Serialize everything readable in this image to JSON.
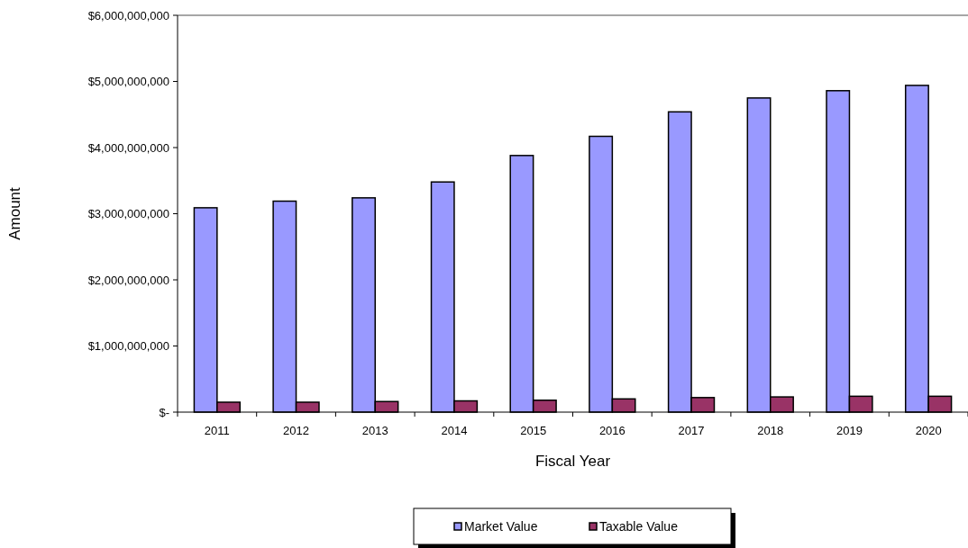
{
  "chart_data": {
    "type": "bar",
    "xlabel": "Fiscal Year",
    "ylabel": "Amount",
    "categories": [
      "2011",
      "2012",
      "2013",
      "2014",
      "2015",
      "2016",
      "2017",
      "2018",
      "2019",
      "2020"
    ],
    "series": [
      {
        "name": "Market Value",
        "color": "#9999ff",
        "values": [
          3090000000,
          3190000000,
          3240000000,
          3480000000,
          3880000000,
          4170000000,
          4540000000,
          4750000000,
          4860000000,
          4940000000
        ]
      },
      {
        "name": "Taxable Value",
        "color": "#993366",
        "values": [
          150000000,
          150000000,
          160000000,
          170000000,
          180000000,
          200000000,
          220000000,
          230000000,
          240000000,
          240000000
        ]
      }
    ],
    "ylim": [
      0,
      6000000000
    ],
    "yticks": [
      {
        "value": 0,
        "label": "$-"
      },
      {
        "value": 1000000000,
        "label": "$1,000,000,000"
      },
      {
        "value": 2000000000,
        "label": "$2,000,000,000"
      },
      {
        "value": 3000000000,
        "label": "$3,000,000,000"
      },
      {
        "value": 4000000000,
        "label": "$4,000,000,000"
      },
      {
        "value": 5000000000,
        "label": "$5,000,000,000"
      },
      {
        "value": 6000000000,
        "label": "$6,000,000,000"
      }
    ],
    "legend": "bottom"
  }
}
